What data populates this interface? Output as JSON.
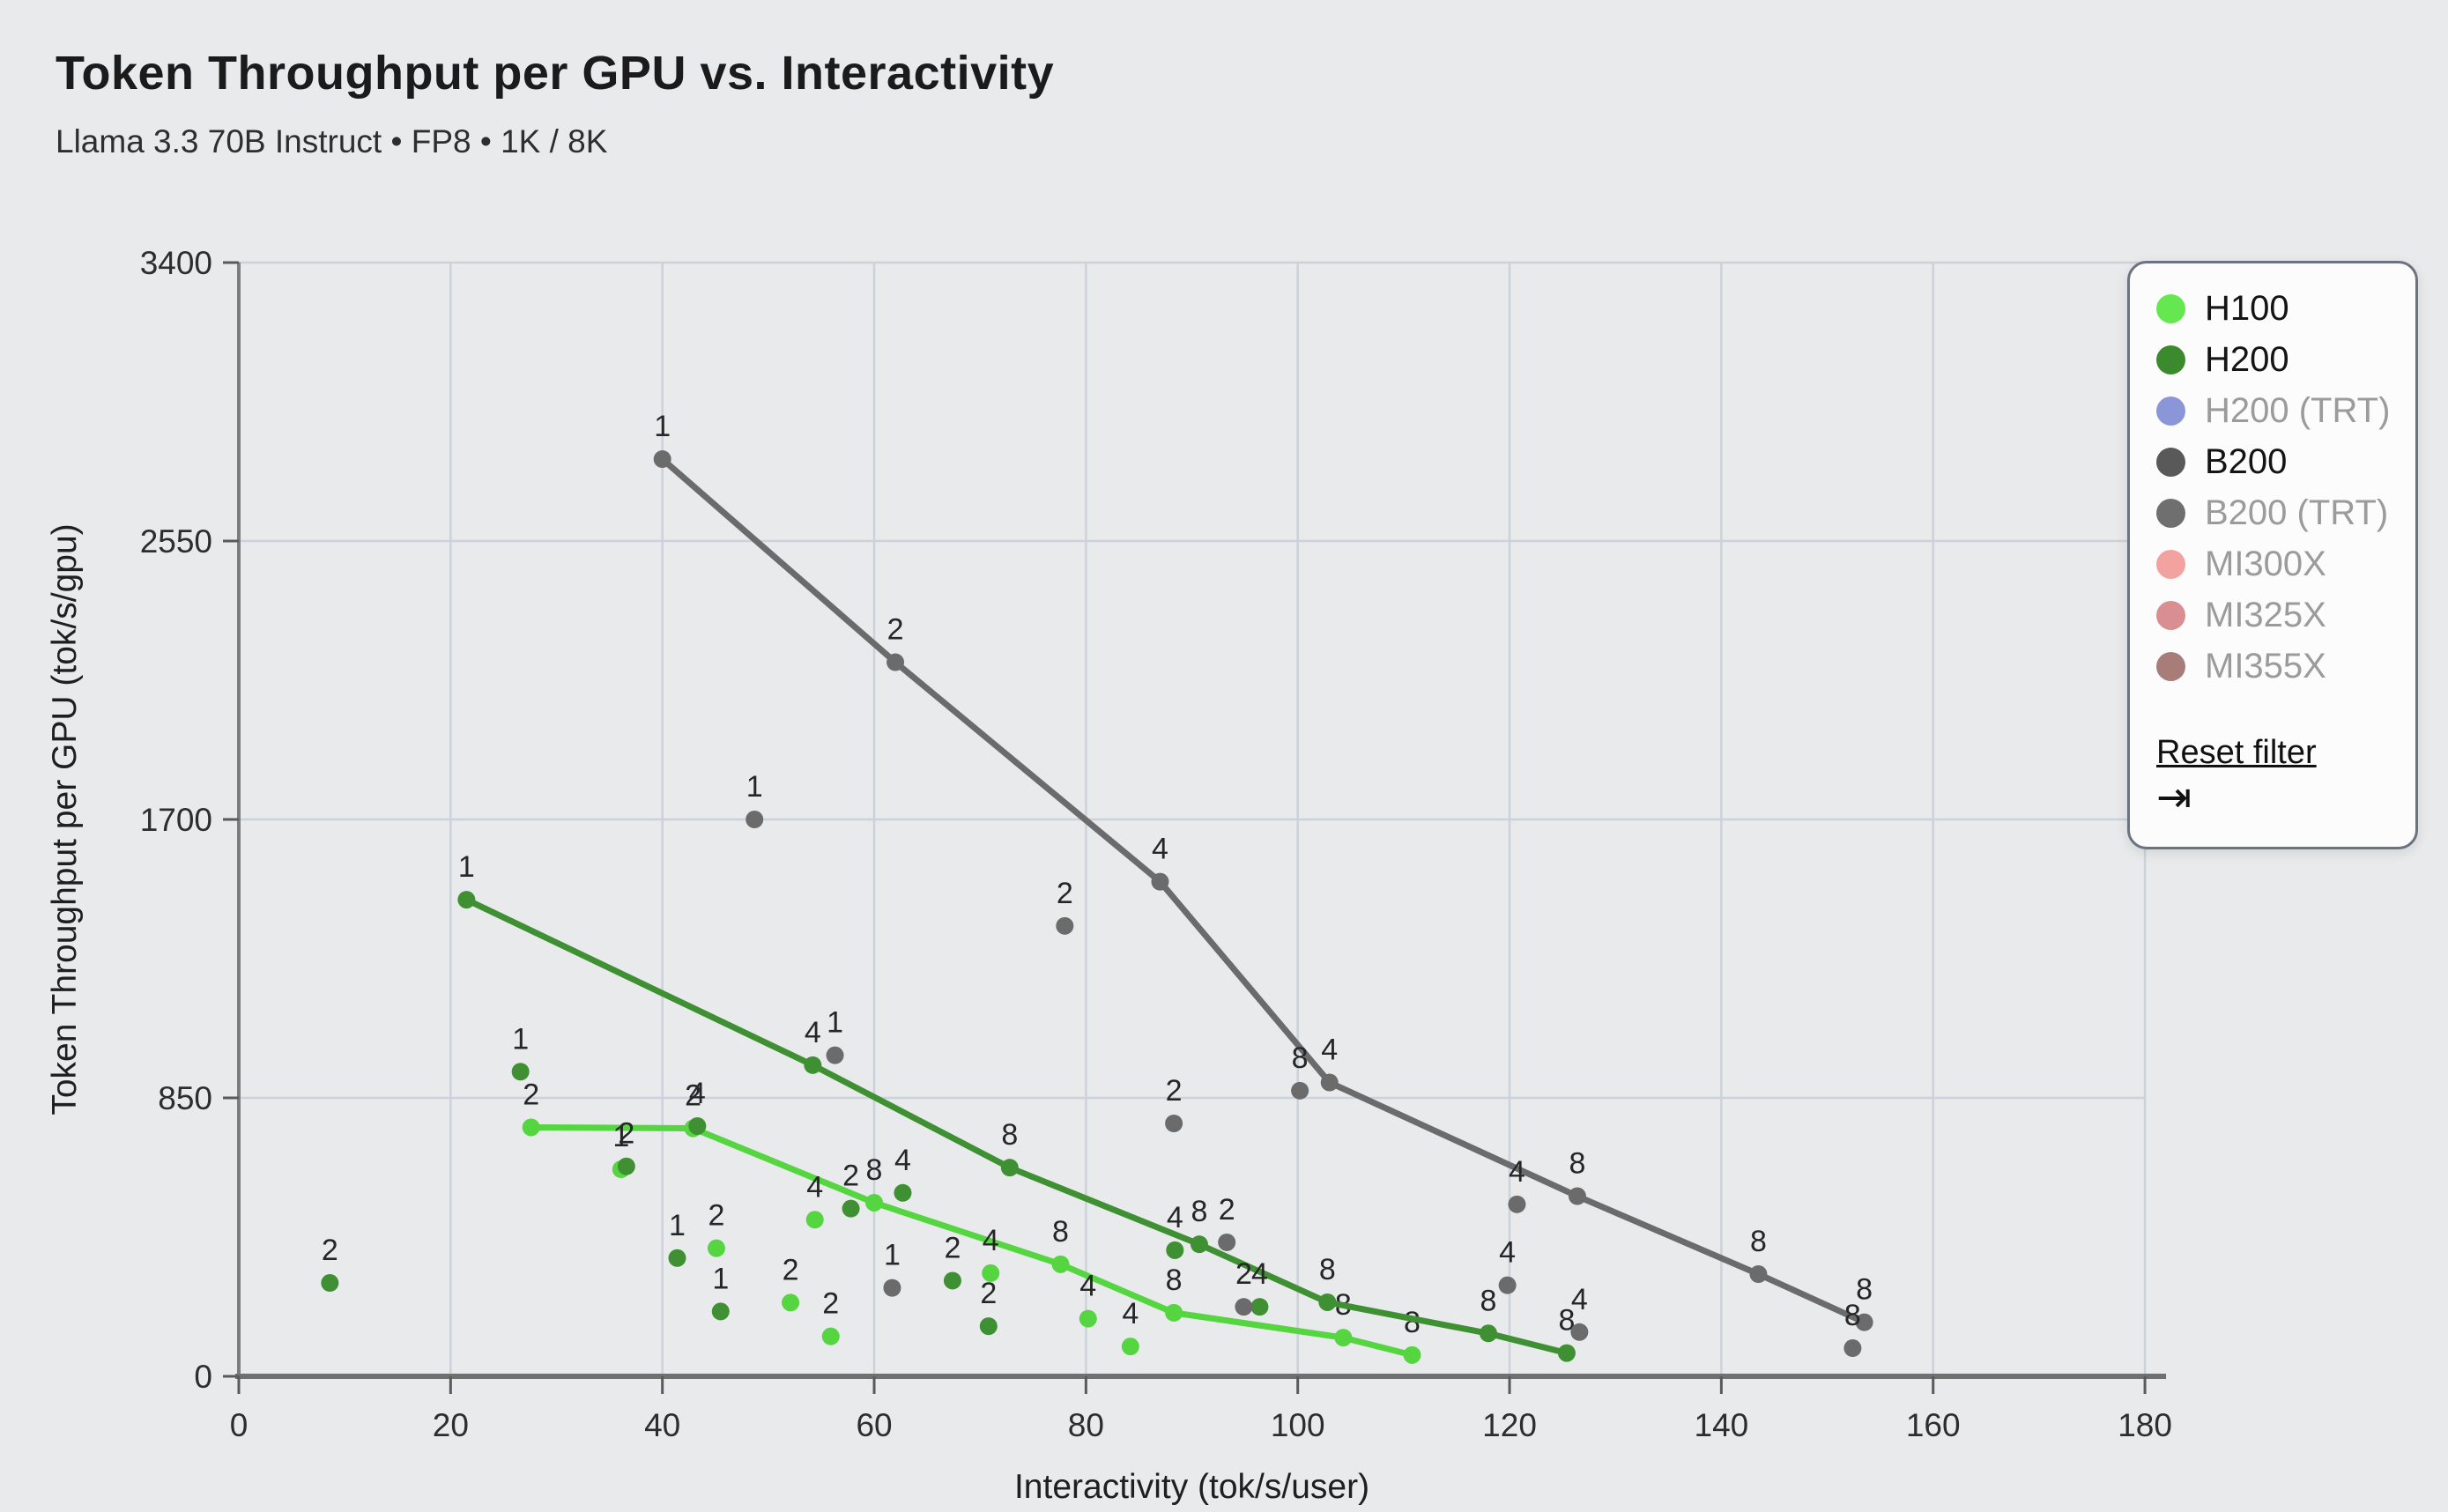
{
  "title": "Token Throughput per GPU vs. Interactivity",
  "subtitle": "Llama 3.3 70B Instruct • FP8 • 1K / 8K",
  "legend": {
    "items": [
      {
        "label": "H100",
        "color": "#64e74f",
        "active": true
      },
      {
        "label": "H200",
        "color": "#3b8b2e",
        "active": true
      },
      {
        "label": "H200 (TRT)",
        "color": "#8a96d8",
        "active": false
      },
      {
        "label": "B200",
        "color": "#595959",
        "active": true
      },
      {
        "label": "B200 (TRT)",
        "color": "#6f6f6f",
        "active": false
      },
      {
        "label": "MI300X",
        "color": "#f2a3a0",
        "active": false
      },
      {
        "label": "MI325X",
        "color": "#d98f92",
        "active": false
      },
      {
        "label": "MI355X",
        "color": "#a87d79",
        "active": false
      }
    ],
    "reset_label": "Reset filter",
    "collapse_icon": "⇥"
  },
  "chart_data": {
    "type": "scatter",
    "title": "Token Throughput per GPU vs. Interactivity",
    "xlabel": "Interactivity (tok/s/user)",
    "ylabel": "Token Throughput per GPU (tok/s/gpu)",
    "xlim": [
      0,
      180
    ],
    "ylim": [
      0,
      3400
    ],
    "xticks": [
      0,
      20,
      40,
      60,
      80,
      100,
      120,
      140,
      160,
      180
    ],
    "yticks": [
      0,
      850,
      1700,
      2550,
      3400
    ],
    "grid": true,
    "legend_position": "top-right",
    "point_label_note": "each point is annotated with its GPU count (1, 2, 4 or 8)",
    "series": [
      {
        "name": "H100",
        "color": "#55d641",
        "line_points": [
          {
            "x": 27.6,
            "y": 760,
            "label": "2"
          },
          {
            "x": 42.9,
            "y": 757,
            "label": "2"
          },
          {
            "x": 60.0,
            "y": 530,
            "label": "8"
          },
          {
            "x": 77.6,
            "y": 342,
            "label": "8"
          },
          {
            "x": 88.3,
            "y": 194,
            "label": "8"
          },
          {
            "x": 104.3,
            "y": 118,
            "label": "8"
          },
          {
            "x": 110.8,
            "y": 65,
            "label": "8"
          }
        ],
        "scatter_points": [
          {
            "x": 36.1,
            "y": 632,
            "label": "1"
          },
          {
            "x": 45.1,
            "y": 391,
            "label": "2"
          },
          {
            "x": 52.1,
            "y": 225,
            "label": "2"
          },
          {
            "x": 55.9,
            "y": 122,
            "label": "2"
          },
          {
            "x": 54.4,
            "y": 478,
            "label": "4"
          },
          {
            "x": 71.0,
            "y": 315,
            "label": "4"
          },
          {
            "x": 80.2,
            "y": 176,
            "label": "4"
          },
          {
            "x": 84.2,
            "y": 91,
            "label": "4"
          }
        ]
      },
      {
        "name": "H200",
        "color": "#3e9032",
        "line_points": [
          {
            "x": 21.5,
            "y": 1455,
            "label": "1"
          },
          {
            "x": 54.2,
            "y": 950,
            "label": "4"
          },
          {
            "x": 72.8,
            "y": 637,
            "label": "8"
          },
          {
            "x": 90.7,
            "y": 403,
            "label": "8"
          },
          {
            "x": 102.8,
            "y": 226,
            "label": "8"
          },
          {
            "x": 118.0,
            "y": 131,
            "label": "8"
          },
          {
            "x": 125.4,
            "y": 71,
            "label": "8"
          }
        ],
        "scatter_points": [
          {
            "x": 8.6,
            "y": 285,
            "label": "2"
          },
          {
            "x": 26.6,
            "y": 930,
            "label": "1"
          },
          {
            "x": 36.6,
            "y": 641,
            "label": "2"
          },
          {
            "x": 41.4,
            "y": 361,
            "label": "1"
          },
          {
            "x": 43.3,
            "y": 764,
            "label": "4"
          },
          {
            "x": 45.5,
            "y": 198,
            "label": "1"
          },
          {
            "x": 57.8,
            "y": 512,
            "label": "2"
          },
          {
            "x": 62.7,
            "y": 560,
            "label": "4"
          },
          {
            "x": 67.4,
            "y": 292,
            "label": "2"
          },
          {
            "x": 70.8,
            "y": 153,
            "label": "2"
          },
          {
            "x": 88.4,
            "y": 385,
            "label": "4"
          },
          {
            "x": 96.4,
            "y": 212,
            "label": "4"
          }
        ]
      },
      {
        "name": "B200",
        "color": "#6b6b6b",
        "line_points": [
          {
            "x": 40.0,
            "y": 2800,
            "label": "1"
          },
          {
            "x": 62.0,
            "y": 2180,
            "label": "2"
          },
          {
            "x": 87.0,
            "y": 1510,
            "label": "4"
          },
          {
            "x": 103.0,
            "y": 897,
            "label": "4"
          },
          {
            "x": 126.4,
            "y": 550,
            "label": "8"
          },
          {
            "x": 143.5,
            "y": 312,
            "label": "8"
          },
          {
            "x": 153.5,
            "y": 165,
            "label": "8"
          }
        ],
        "scatter_points": [
          {
            "x": 48.7,
            "y": 1700,
            "label": "1"
          },
          {
            "x": 56.3,
            "y": 980,
            "label": "1"
          },
          {
            "x": 61.7,
            "y": 270,
            "label": "1"
          },
          {
            "x": 78.0,
            "y": 1375,
            "label": "2"
          },
          {
            "x": 88.3,
            "y": 772,
            "label": "2"
          },
          {
            "x": 93.3,
            "y": 409,
            "label": "2"
          },
          {
            "x": 94.9,
            "y": 212,
            "label": "2"
          },
          {
            "x": 100.2,
            "y": 872,
            "label": "8"
          },
          {
            "x": 119.8,
            "y": 278,
            "label": "4"
          },
          {
            "x": 120.7,
            "y": 525,
            "label": "4"
          },
          {
            "x": 126.6,
            "y": 135,
            "label": "4"
          },
          {
            "x": 152.4,
            "y": 86,
            "label": "8"
          }
        ]
      }
    ]
  }
}
